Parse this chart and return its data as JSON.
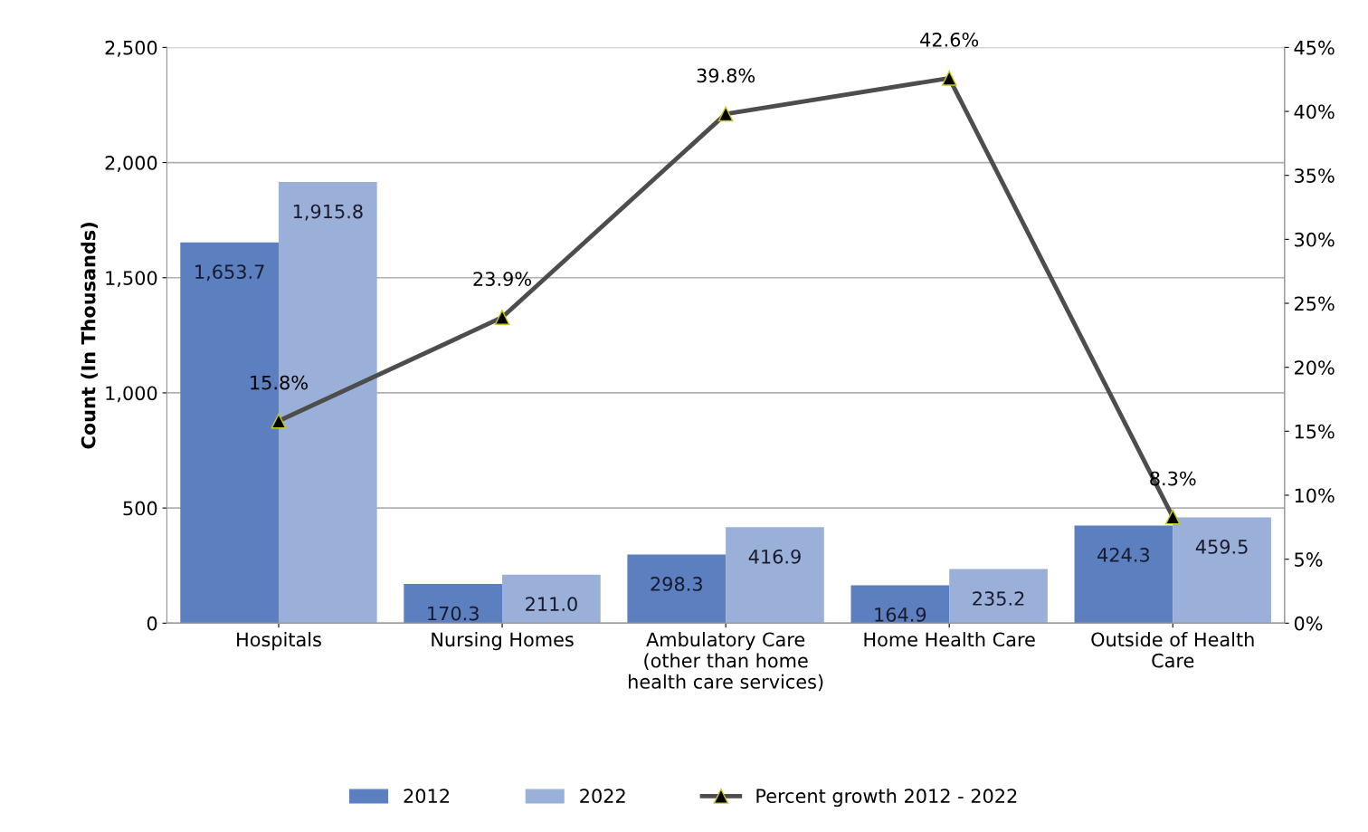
{
  "chart_data": {
    "type": "bar",
    "ylabel": "Count (In Thousands)",
    "categories": [
      "Hospitals",
      "Nursing Homes",
      "Ambulatory Care\n(other than home\nhealth care services)",
      "Home Health Care",
      "Outside of Health\nCare"
    ],
    "series": [
      {
        "name": "2012",
        "color": "#5b7fbf",
        "values": [
          1653.7,
          170.3,
          298.3,
          164.9,
          424.3
        ],
        "value_labels": [
          "1,653.7",
          "170.3",
          "298.3",
          "164.9",
          "424.3"
        ]
      },
      {
        "name": "2022",
        "color": "#9bb0d8",
        "values": [
          1915.8,
          211.0,
          416.9,
          235.2,
          459.5
        ],
        "value_labels": [
          "1,915.8",
          "211.0",
          "416.9",
          "235.2",
          "459.5"
        ]
      },
      {
        "name": "Percent growth 2012 - 2022",
        "type": "line",
        "axis": "y2",
        "color": "#4d4d4d",
        "marker": "triangle",
        "values": [
          15.8,
          23.9,
          39.8,
          42.6,
          8.3
        ],
        "value_labels": [
          "15.8%",
          "23.9%",
          "39.8%",
          "42.6%",
          "8.3%"
        ]
      }
    ],
    "ylim": [
      0,
      2500
    ],
    "yticks": [
      {
        "value": 0,
        "label": "0"
      },
      {
        "value": 500,
        "label": "500"
      },
      {
        "value": 1000,
        "label": "1,000"
      },
      {
        "value": 1500,
        "label": "1,500"
      },
      {
        "value": 2000,
        "label": "2,000"
      },
      {
        "value": 2500,
        "label": "2,500"
      }
    ],
    "y2lim": [
      0,
      45
    ],
    "y2ticks": [
      {
        "value": 0,
        "label": "0%"
      },
      {
        "value": 5,
        "label": "5%"
      },
      {
        "value": 10,
        "label": "10%"
      },
      {
        "value": 15,
        "label": "15%"
      },
      {
        "value": 20,
        "label": "20%"
      },
      {
        "value": 25,
        "label": "25%"
      },
      {
        "value": 30,
        "label": "30%"
      },
      {
        "value": 35,
        "label": "35%"
      },
      {
        "value": 40,
        "label": "40%"
      },
      {
        "value": 45,
        "label": "45%"
      }
    ],
    "grid": "y",
    "legend": "bottom"
  }
}
